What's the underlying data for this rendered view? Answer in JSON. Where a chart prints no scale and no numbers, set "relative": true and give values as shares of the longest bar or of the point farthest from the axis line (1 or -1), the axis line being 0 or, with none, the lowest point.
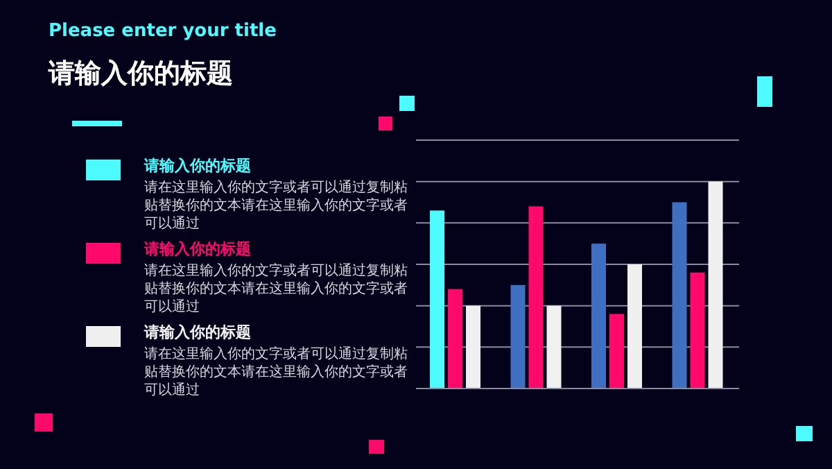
{
  "chart_data": {
    "type": "bar",
    "subtitle": "Please enter your title",
    "title": "请输入你的标题",
    "categories": [
      null,
      null,
      null,
      null
    ],
    "relative": true,
    "grid": "y",
    "legend": "left",
    "series": [
      {
        "name": "请输入你的标题",
        "color": "#4dfbff",
        "colors": [
          "#4dfbff",
          "#3f6fc0",
          "#3f6fc0",
          "#3f6fc0"
        ],
        "values": [
          0.86,
          0.5,
          0.7,
          0.9
        ]
      },
      {
        "name": "请输入你的标题",
        "color": "#ff0a6c",
        "values": [
          0.48,
          0.88,
          0.36,
          0.56
        ]
      },
      {
        "name": "请输入你的标题",
        "color": "#f0f0f0",
        "values": [
          0.4,
          0.4,
          0.6,
          1
        ]
      }
    ],
    "annotations": [
      "请在这里输入你的文字或者可以通过复制粘贴替换你的文本请在这里输入你的文字或者可以通过",
      "请在这里输入你的文字或者可以通过复制粘贴替换你的文本请在这里输入你的文字或者可以通过",
      "请在这里输入你的文字或者可以通过复制粘贴替换你的文本请在这里输入你的文字或者可以通过"
    ]
  }
}
